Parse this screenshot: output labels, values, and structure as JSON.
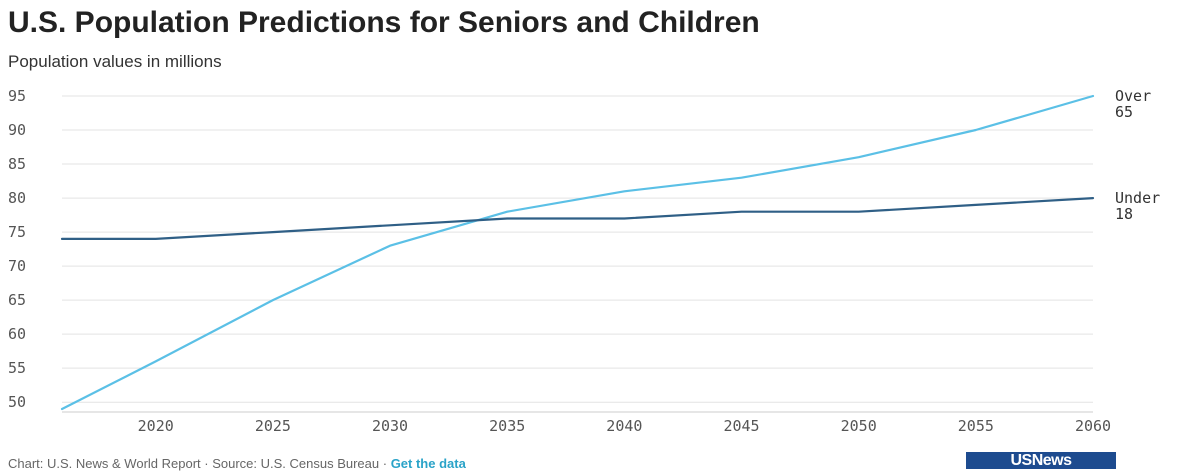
{
  "title": "U.S. Population Predictions for Seniors and Children",
  "subtitle": "Population values in millions",
  "footer": {
    "credit": "Chart: U.S. News & World Report · Source: U.S. Census Bureau · ",
    "link": "Get the data"
  },
  "logo": "USNews",
  "colors": {
    "over65": "#5bc0e6",
    "under18": "#2f5f86",
    "grid": "#e3e3e3"
  },
  "chart_data": {
    "type": "line",
    "title": "U.S. Population Predictions for Seniors and Children",
    "subtitle": "Population values in millions",
    "x_ticks": [
      2020,
      2025,
      2030,
      2035,
      2040,
      2045,
      2050,
      2055,
      2060
    ],
    "y_ticks": [
      50,
      55,
      60,
      65,
      70,
      75,
      80,
      85,
      90,
      95
    ],
    "xlim": [
      2016,
      2060
    ],
    "ylim": [
      49,
      95
    ],
    "grid": true,
    "series": [
      {
        "name": "Over 65",
        "label_lines": [
          "Over",
          "65"
        ],
        "color": "#5bc0e6",
        "x": [
          2016,
          2020,
          2025,
          2030,
          2035,
          2040,
          2045,
          2050,
          2055,
          2060
        ],
        "values": [
          49,
          56,
          65,
          73,
          78,
          81,
          83,
          86,
          90,
          95
        ]
      },
      {
        "name": "Under 18",
        "label_lines": [
          "Under",
          "18"
        ],
        "color": "#2f5f86",
        "x": [
          2016,
          2020,
          2025,
          2030,
          2035,
          2040,
          2045,
          2050,
          2055,
          2060
        ],
        "values": [
          74,
          74,
          75,
          76,
          77,
          77,
          78,
          78,
          79,
          80
        ]
      }
    ]
  }
}
